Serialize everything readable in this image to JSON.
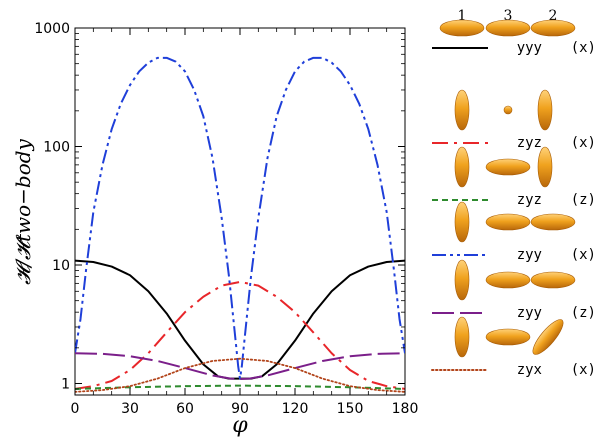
{
  "chart_data": {
    "type": "line",
    "title": "",
    "xlabel": "φ",
    "ylabel": "𝓗/𝓗two−body",
    "xlim": [
      0,
      180
    ],
    "ylim": [
      0.8,
      1000
    ],
    "y_scale": "log",
    "x_ticks": [
      "0",
      "30",
      "60",
      "90",
      "120",
      "150",
      "180"
    ],
    "y_ticks": [
      "1",
      "10",
      "100",
      "1000"
    ],
    "grid": false,
    "legend_position": "right",
    "particle_labels": [
      "1",
      "3",
      "2"
    ],
    "series": [
      {
        "name": "yyy",
        "axis": "(x)",
        "color": "#000000",
        "dash": "solid",
        "x": [
          0,
          10,
          20,
          30,
          40,
          50,
          60,
          70,
          78,
          84,
          90,
          96,
          102,
          110,
          120,
          130,
          140,
          150,
          160,
          170,
          180
        ],
        "y": [
          10.9,
          10.6,
          9.7,
          8.2,
          6.0,
          3.9,
          2.3,
          1.45,
          1.15,
          1.1,
          1.1,
          1.1,
          1.15,
          1.45,
          2.3,
          3.9,
          6.0,
          8.2,
          9.7,
          10.6,
          10.9
        ]
      },
      {
        "name": "zyz",
        "axis": "(x)",
        "color": "#e8262a",
        "dash": "dashdot",
        "x": [
          0,
          10,
          20,
          30,
          40,
          50,
          60,
          70,
          80,
          90,
          100,
          110,
          120,
          130,
          140,
          150,
          160,
          170,
          180
        ],
        "y": [
          0.9,
          0.95,
          1.05,
          1.3,
          1.8,
          2.7,
          4.0,
          5.4,
          6.7,
          7.2,
          6.7,
          5.4,
          4.0,
          2.7,
          1.8,
          1.3,
          1.05,
          0.95,
          0.9
        ]
      },
      {
        "name": "zyz",
        "axis": "(z)",
        "color": "#2e8b2e",
        "dash": "dashed",
        "x": [
          0,
          30,
          60,
          90,
          120,
          150,
          180
        ],
        "y": [
          0.9,
          0.93,
          0.95,
          0.96,
          0.95,
          0.93,
          0.9
        ]
      },
      {
        "name": "zyy",
        "axis": "(x)",
        "color": "#1f3fd9",
        "dash": "dashdotdot",
        "x": [
          0,
          3,
          6,
          10,
          15,
          20,
          25,
          30,
          35,
          40,
          45,
          50,
          55,
          60,
          65,
          70,
          75,
          80,
          84,
          88,
          89,
          90,
          91,
          92,
          96,
          100,
          105,
          110,
          115,
          120,
          125,
          130,
          135,
          140,
          145,
          150,
          155,
          160,
          165,
          170,
          174,
          177,
          180
        ],
        "y": [
          1.8,
          3.5,
          9,
          28,
          70,
          140,
          230,
          330,
          430,
          510,
          560,
          560,
          520,
          430,
          300,
          180,
          80,
          25,
          8,
          2,
          1.4,
          1.1,
          1.4,
          2,
          8,
          25,
          80,
          180,
          300,
          430,
          520,
          560,
          560,
          510,
          430,
          330,
          230,
          140,
          70,
          28,
          9,
          3.5,
          1.8
        ]
      },
      {
        "name": "zyy",
        "axis": "(z)",
        "color": "#7b1f8a",
        "dash": "longdash",
        "x": [
          0,
          15,
          30,
          45,
          60,
          75,
          85,
          90,
          95,
          105,
          120,
          135,
          150,
          165,
          180
        ],
        "y": [
          1.8,
          1.78,
          1.7,
          1.55,
          1.35,
          1.17,
          1.1,
          1.09,
          1.1,
          1.17,
          1.35,
          1.55,
          1.7,
          1.78,
          1.8
        ]
      },
      {
        "name": "zyx",
        "axis": "(x)",
        "color": "#b2441a",
        "dash": "dotted",
        "x": [
          0,
          15,
          30,
          45,
          60,
          75,
          90,
          105,
          120,
          135,
          150,
          165,
          180
        ],
        "y": [
          0.85,
          0.88,
          0.95,
          1.1,
          1.35,
          1.55,
          1.62,
          1.55,
          1.35,
          1.1,
          0.95,
          0.88,
          0.85
        ]
      }
    ]
  }
}
